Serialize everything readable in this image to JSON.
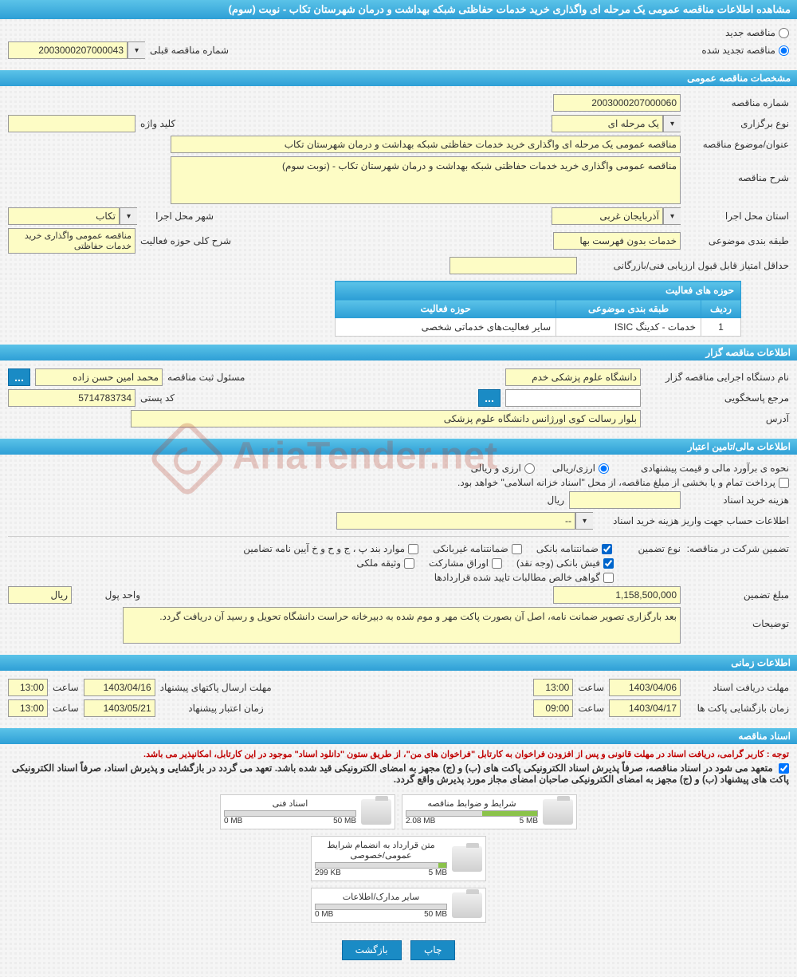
{
  "page_title": "مشاهده اطلاعات مناقصه عمومی یک مرحله ای واگذاری خرید خدمات حفاظتی شبکه بهداشت و درمان شهرستان تکاب - نوبت (سوم)",
  "radio_options": {
    "new_tender": "مناقصه جدید",
    "renewed_tender": "مناقصه تجدید شده"
  },
  "prev_tender_label": "شماره مناقصه قبلی",
  "prev_tender_value": "2003000207000043",
  "section_general": "مشخصات مناقصه عمومی",
  "general": {
    "tender_no_label": "شماره مناقصه",
    "tender_no": "2003000207000060",
    "type_label": "نوع برگزاری",
    "type_value": "یک مرحله ای",
    "keyword_label": "کلید واژه",
    "keyword_value": "",
    "subject_label": "عنوان/موضوع مناقصه",
    "subject_value": "مناقصه عمومی یک مرحله ای واگذاری خرید خدمات حفاظتی شبکه بهداشت و درمان شهرستان تکاب",
    "desc_label": "شرح مناقصه",
    "desc_value": "مناقصه عمومی واگذاری خرید خدمات حفاظتی شبکه بهداشت و درمان شهرستان تکاب - (نوبت سوم)",
    "province_label": "استان محل اجرا",
    "province_value": "آذربایجان غربی",
    "city_label": "شهر محل اجرا",
    "city_value": "تکاب",
    "category_label": "طبقه بندی موضوعی",
    "category_value": "خدمات بدون فهرست بها",
    "activity_scope_label": "شرح کلی حوزه فعالیت",
    "activity_scope_value": "مناقصه عمومی واگذاری خرید خدمات حفاظتی",
    "min_score_label": "حداقل امتیاز قابل قبول ارزیابی فنی/بازرگانی",
    "min_score_value": ""
  },
  "activity_table": {
    "title": "حوزه های فعالیت",
    "headers": {
      "row": "ردیف",
      "category": "طبقه بندی موضوعی",
      "scope": "حوزه فعالیت"
    },
    "row1": {
      "num": "1",
      "cat": "خدمات - کدینگ ISIC",
      "scope": "سایر فعالیت‌های خدماتی شخصی"
    }
  },
  "section_tenderer": "اطلاعات مناقصه گزار",
  "tenderer": {
    "org_label": "نام دستگاه اجرایی مناقصه گزار",
    "org_value": "دانشگاه علوم پزشکی خدم",
    "registrar_label": "مسئول ثبت مناقصه",
    "registrar_value": "محمد امین حسن زاده",
    "responder_label": "مرجع پاسخگویی",
    "postal_label": "کد پستی",
    "postal_value": "5714783734",
    "address_label": "آدرس",
    "address_value": "بلوار رسالت کوی اورژانس دانشگاه علوم پزشکی"
  },
  "section_financial": "اطلاعات مالی/تامین اعتبار",
  "financial": {
    "estimate_label": "نحوه ی برآورد مالی و قیمت پیشنهادی",
    "fx_option": "ارزی/ریالی",
    "fx_option2": "ارزی و ریالی",
    "treasury_note": "پرداخت تمام و یا بخشی از مبلغ مناقصه، از محل \"اسناد خزانه اسلامی\" خواهد بود.",
    "doc_cost_label": "هزینه خرید اسناد",
    "currency_rial": "ریال",
    "doc_cost_value": "",
    "account_info_label": "اطلاعات حساب جهت واریز هزینه خرید اسناد",
    "account_info_value": "--",
    "guarantee_label": "تضمین شرکت در مناقصه:",
    "guarantee_type_label": "نوع تضمین",
    "checkboxes": {
      "bank_guarantee": "ضمانتنامه بانکی",
      "nonbank_guarantee": "ضمانتنامه غیربانکی",
      "regulation_items": "موارد بند پ ، ج و ح و خ آیین نامه تضامین",
      "cash_receipt": "فیش بانکی (وجه نقد)",
      "participation_bonds": "اوراق مشارکت",
      "property_pledge": "وثیقه ملکی",
      "net_claims": "گواهی خالص مطالبات تایید شده قراردادها"
    },
    "guarantee_amount_label": "مبلغ تضمین",
    "guarantee_amount_value": "1,158,500,000",
    "unit_label": "واحد پول",
    "unit_value": "ریال",
    "notes_label": "توضیحات",
    "notes_value": "بعد بارگزاری تصویر ضمانت نامه، اصل آن بصورت پاکت مهر و موم شده به دبیرخانه حراست دانشگاه تحویل و رسید آن دریافت گردد."
  },
  "section_time": "اطلاعات زمانی",
  "time": {
    "receive_deadline_label": "مهلت دریافت اسناد",
    "receive_deadline_date": "1403/04/06",
    "receive_deadline_time": "13:00",
    "time_label": "ساعت",
    "send_deadline_label": "مهلت ارسال پاکتهای پیشنهاد",
    "send_deadline_date": "1403/04/16",
    "send_deadline_time": "13:00",
    "opening_label": "زمان بازگشایی پاکت ها",
    "opening_date": "1403/04/17",
    "opening_time": "09:00",
    "validity_label": "زمان اعتبار پیشنهاد",
    "validity_date": "1403/05/21",
    "validity_time": "13:00"
  },
  "section_docs": "اسناد مناقصه",
  "docs_notice": "توجه : کاربر گرامی، دریافت اسناد در مهلت قانونی و پس از افزودن فراخوان به کارتابل \"فراخوان های من\"، از طریق ستون \"دانلود اسناد\" موجود در این کارتابل، امکانپذیر می باشد.",
  "docs_commitment": "متعهد می شود در اسناد مناقصه، صرفاً پذیرش اسناد الکترونیکی پاکت های (ب) و (ج) مجهز به امضای الکترونیکی قید شده باشد. تعهد می گردد در بازگشایی و پذیرش اسناد، صرفاً اسناد الکترونیکی پاکت های پیشنهاد (ب) و (ج) مجهز به امضای الکترونیکی صاحبان امضای مجاز مورد پذیرش واقع گردد.",
  "documents": [
    {
      "title": "شرایط و ضوابط مناقصه",
      "used": "2.08 MB",
      "total": "5 MB",
      "pct": 42
    },
    {
      "title": "اسناد فنی",
      "used": "0 MB",
      "total": "50 MB",
      "pct": 0
    },
    {
      "title": "متن قرارداد به انضمام شرایط عمومی/خصوصی",
      "used": "299 KB",
      "total": "5 MB",
      "pct": 6
    },
    {
      "title": "سایر مدارک/اطلاعات",
      "used": "0 MB",
      "total": "50 MB",
      "pct": 0
    }
  ],
  "buttons": {
    "print": "چاپ",
    "back": "بازگشت"
  },
  "watermark": "AriaTender.net"
}
